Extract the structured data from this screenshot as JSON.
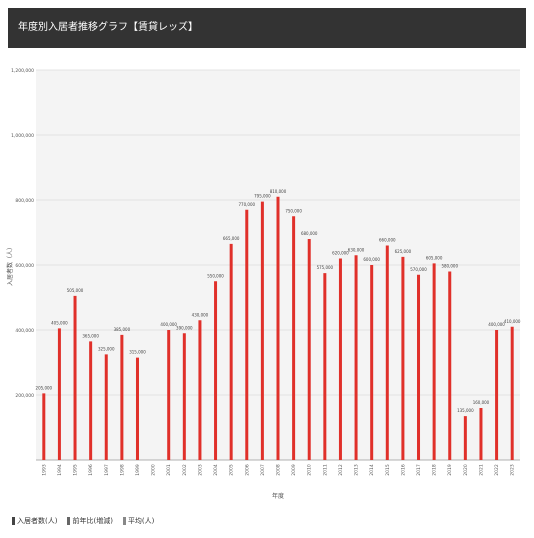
{
  "header": {
    "title": "年度別入居者推移グラフ【賃貸レッズ】"
  },
  "chart_data": {
    "type": "bar",
    "xlabel": "年度",
    "ylabel": "入居者数（人）",
    "ylim": [
      0,
      1200000
    ],
    "yticks": [
      200000,
      400000,
      600000,
      800000,
      1000000,
      1200000
    ],
    "ytick_labels": [
      "200,000",
      "400,000",
      "600,000",
      "800,000",
      "1,000,000",
      "1,200,000"
    ],
    "grid": true,
    "legend_position": "bottom-left",
    "legend": [
      "入居者数(人)",
      "前年比(増減)",
      "平均(人)"
    ],
    "bar_color": "#e0302a",
    "categories": [
      "1993",
      "1994",
      "1995",
      "1996",
      "1997",
      "1998",
      "1999",
      "2000",
      "2001",
      "2002",
      "2003",
      "2004",
      "2005",
      "2006",
      "2007",
      "2008",
      "2009",
      "2010",
      "2011",
      "2012",
      "2013",
      "2014",
      "2015",
      "2016",
      "2017",
      "2018",
      "2019",
      "2020",
      "2021",
      "2022",
      "2023"
    ],
    "values": [
      205000,
      405000,
      505000,
      365000,
      325000,
      385000,
      315000,
      null,
      400000,
      390000,
      430000,
      550000,
      665000,
      770000,
      795000,
      810000,
      750000,
      680000,
      575000,
      620000,
      630000,
      600000,
      660000,
      625000,
      570000,
      605000,
      580000,
      135000,
      160000,
      400000,
      410000
    ]
  }
}
